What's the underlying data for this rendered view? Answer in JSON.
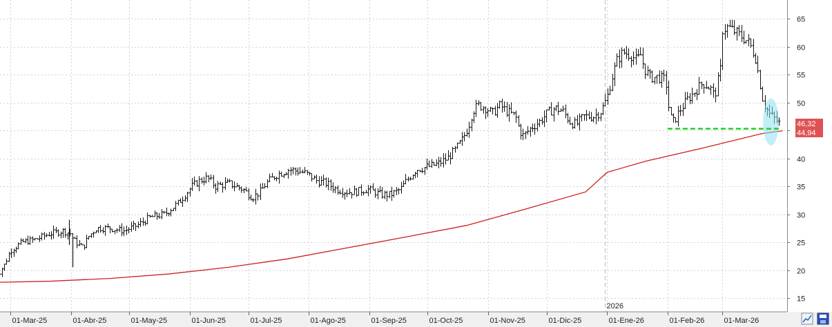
{
  "chart_data": {
    "type": "line",
    "subtype": "ohlc-bar-chart",
    "title": "",
    "xlabel": "",
    "ylabel": "",
    "ylim": [
      13,
      68
    ],
    "y_ticks": [
      15,
      20,
      25,
      30,
      35,
      40,
      45,
      50,
      55,
      60,
      65
    ],
    "x_ticks": [
      "01-Mar-25",
      "01-Abr-25",
      "01-May-25",
      "01-Jun-25",
      "01-Jul-25",
      "01-Ago-25",
      "01-Sep-25",
      "01-Oct-25",
      "01-Nov-25",
      "01-Dic-25",
      "01-Ene-26",
      "01-Feb-26",
      "01-Mar-26"
    ],
    "year_marker": "2026",
    "grid": true,
    "price_series": {
      "name": "",
      "color": "#111111",
      "anchors": [
        {
          "x": "2025-02-21",
          "y": 18.5
        },
        {
          "x": "2025-02-26",
          "y": 21
        },
        {
          "x": "2025-03-01",
          "y": 23.5
        },
        {
          "x": "2025-03-07",
          "y": 25
        },
        {
          "x": "2025-03-14",
          "y": 25.5
        },
        {
          "x": "2025-03-21",
          "y": 26.5
        },
        {
          "x": "2025-03-28",
          "y": 27
        },
        {
          "x": "2025-04-01",
          "y": 26.5
        },
        {
          "x": "2025-04-02",
          "y": 25.5
        },
        {
          "x": "2025-04-07",
          "y": 24
        },
        {
          "x": "2025-04-10",
          "y": 26
        },
        {
          "x": "2025-04-14",
          "y": 27.5
        },
        {
          "x": "2025-04-21",
          "y": 27.5
        },
        {
          "x": "2025-04-28",
          "y": 27
        },
        {
          "x": "2025-05-05",
          "y": 28
        },
        {
          "x": "2025-05-12",
          "y": 29.5
        },
        {
          "x": "2025-05-19",
          "y": 30
        },
        {
          "x": "2025-05-26",
          "y": 32
        },
        {
          "x": "2025-06-02",
          "y": 35
        },
        {
          "x": "2025-06-06",
          "y": 36
        },
        {
          "x": "2025-06-10",
          "y": 36.5
        },
        {
          "x": "2025-06-14",
          "y": 35
        },
        {
          "x": "2025-06-21",
          "y": 35.5
        },
        {
          "x": "2025-06-28",
          "y": 34.5
        },
        {
          "x": "2025-07-03",
          "y": 33
        },
        {
          "x": "2025-07-07",
          "y": 34
        },
        {
          "x": "2025-07-10",
          "y": 35.5
        },
        {
          "x": "2025-07-15",
          "y": 37
        },
        {
          "x": "2025-07-22",
          "y": 38
        },
        {
          "x": "2025-07-29",
          "y": 37.5
        },
        {
          "x": "2025-08-01",
          "y": 37
        },
        {
          "x": "2025-08-05",
          "y": 36
        },
        {
          "x": "2025-08-10",
          "y": 35.5
        },
        {
          "x": "2025-08-15",
          "y": 34.5
        },
        {
          "x": "2025-08-20",
          "y": 34
        },
        {
          "x": "2025-08-25",
          "y": 34
        },
        {
          "x": "2025-08-31",
          "y": 34.5
        },
        {
          "x": "2025-09-07",
          "y": 33.5
        },
        {
          "x": "2025-09-12",
          "y": 33.5
        },
        {
          "x": "2025-09-17",
          "y": 34.5
        },
        {
          "x": "2025-09-20",
          "y": 36
        },
        {
          "x": "2025-09-25",
          "y": 38
        },
        {
          "x": "2025-10-01",
          "y": 38.5
        },
        {
          "x": "2025-10-06",
          "y": 39
        },
        {
          "x": "2025-10-11",
          "y": 40
        },
        {
          "x": "2025-10-15",
          "y": 41.5
        },
        {
          "x": "2025-10-19",
          "y": 43.5
        },
        {
          "x": "2025-10-22",
          "y": 46
        },
        {
          "x": "2025-10-24",
          "y": 48.5
        },
        {
          "x": "2025-10-27",
          "y": 49.5
        },
        {
          "x": "2025-10-31",
          "y": 49
        },
        {
          "x": "2025-11-03",
          "y": 48
        },
        {
          "x": "2025-11-07",
          "y": 49.5
        },
        {
          "x": "2025-11-10",
          "y": 48.5
        },
        {
          "x": "2025-11-15",
          "y": 47.5
        },
        {
          "x": "2025-11-17",
          "y": 45
        },
        {
          "x": "2025-11-19",
          "y": 44
        },
        {
          "x": "2025-11-23",
          "y": 45.5
        },
        {
          "x": "2025-11-27",
          "y": 46.5
        },
        {
          "x": "2025-12-01",
          "y": 48
        },
        {
          "x": "2025-12-05",
          "y": 49
        },
        {
          "x": "2025-12-09",
          "y": 48.5
        },
        {
          "x": "2025-12-13",
          "y": 46.5
        },
        {
          "x": "2025-12-16",
          "y": 46
        },
        {
          "x": "2025-12-20",
          "y": 47.5
        },
        {
          "x": "2025-12-25",
          "y": 47.5
        },
        {
          "x": "2025-12-29",
          "y": 48.5
        },
        {
          "x": "2026-01-01",
          "y": 51
        },
        {
          "x": "2026-01-03",
          "y": 54
        },
        {
          "x": "2026-01-06",
          "y": 57.5
        },
        {
          "x": "2026-01-09",
          "y": 59
        },
        {
          "x": "2026-01-13",
          "y": 58.5
        },
        {
          "x": "2026-01-16",
          "y": 57.5
        },
        {
          "x": "2026-01-18",
          "y": 58.5
        },
        {
          "x": "2026-01-20",
          "y": 56
        },
        {
          "x": "2026-01-23",
          "y": 54.5
        },
        {
          "x": "2026-01-27",
          "y": 54.5
        },
        {
          "x": "2026-01-31",
          "y": 54
        },
        {
          "x": "2026-02-02",
          "y": 47.5
        },
        {
          "x": "2026-02-04",
          "y": 46.5
        },
        {
          "x": "2026-02-07",
          "y": 48.5
        },
        {
          "x": "2026-02-11",
          "y": 50.5
        },
        {
          "x": "2026-02-15",
          "y": 52
        },
        {
          "x": "2026-02-19",
          "y": 53.5
        },
        {
          "x": "2026-02-23",
          "y": 52.5
        },
        {
          "x": "2026-02-25",
          "y": 51
        },
        {
          "x": "2026-02-28",
          "y": 56
        },
        {
          "x": "2026-03-01",
          "y": 63
        },
        {
          "x": "2026-03-04",
          "y": 63.5
        },
        {
          "x": "2026-03-08",
          "y": 62.5
        },
        {
          "x": "2026-03-12",
          "y": 61.5
        },
        {
          "x": "2026-03-15",
          "y": 60.5
        },
        {
          "x": "2026-03-18",
          "y": 58
        },
        {
          "x": "2026-03-20",
          "y": 54
        },
        {
          "x": "2026-03-22",
          "y": 50
        },
        {
          "x": "2026-03-25",
          "y": 48
        },
        {
          "x": "2026-03-28",
          "y": 47
        },
        {
          "x": "2026-03-31",
          "y": 46
        }
      ],
      "spikes": [
        {
          "x": "2025-03-31",
          "low": 24.5,
          "high": 29
        },
        {
          "x": "2025-04-02",
          "low": 20.5,
          "high": 26
        }
      ],
      "last_close": "46,32"
    },
    "moving_average": {
      "name": "",
      "color": "#cc1f1f",
      "points": [
        {
          "x": "2025-02-21",
          "y": 17.8
        },
        {
          "x": "2025-03-21",
          "y": 18
        },
        {
          "x": "2025-04-21",
          "y": 18.5
        },
        {
          "x": "2025-05-21",
          "y": 19.3
        },
        {
          "x": "2025-06-21",
          "y": 20.5
        },
        {
          "x": "2025-07-21",
          "y": 22
        },
        {
          "x": "2025-08-21",
          "y": 24
        },
        {
          "x": "2025-09-21",
          "y": 26
        },
        {
          "x": "2025-10-21",
          "y": 28
        },
        {
          "x": "2025-11-21",
          "y": 31
        },
        {
          "x": "2025-12-21",
          "y": 34
        },
        {
          "x": "2026-01-01",
          "y": 37.5
        },
        {
          "x": "2026-01-21",
          "y": 39.5
        },
        {
          "x": "2026-02-21",
          "y": 42
        },
        {
          "x": "2026-03-21",
          "y": 44.4
        },
        {
          "x": "2026-04-01",
          "y": 44.94
        }
      ],
      "last_value": "44,94"
    },
    "support_line": {
      "color": "#22cc22",
      "y": 45.3,
      "x_start": "2026-02-01",
      "x_end": "2026-03-31"
    },
    "highlight": {
      "color": "#8fe0f0",
      "center_x": "2026-03-26",
      "center_y": 46.5,
      "rx_days": 4,
      "ry_units": 4.2
    }
  },
  "labels": {
    "last_price": "46,32",
    "ma_value": "44,94",
    "year_marker": "2026"
  },
  "icons": {
    "zoom": "zoom-chart-icon",
    "save": "save-disk-icon"
  }
}
